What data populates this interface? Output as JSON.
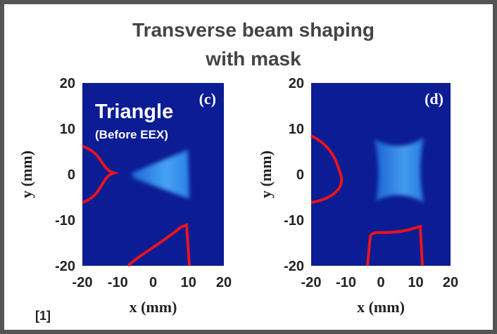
{
  "title_lines": [
    "Transverse beam shaping",
    "with mask"
  ],
  "panels": [
    {
      "label": "(c)",
      "annotation": "Triangle",
      "annotation_sub": "(Before EEX)",
      "x_label": "x (mm)",
      "y_label": "y (mm)",
      "xticks": [
        -20,
        -10,
        0,
        10,
        20
      ],
      "yticks": [
        20,
        10,
        0,
        -10,
        -20
      ]
    },
    {
      "label": "(d)",
      "x_label": "x (mm)",
      "y_label": "y (mm)",
      "xticks": [
        -20,
        -10,
        0,
        10,
        20
      ],
      "yticks": [
        20,
        10,
        0,
        -10,
        -20
      ]
    }
  ],
  "citation": "[1]"
}
